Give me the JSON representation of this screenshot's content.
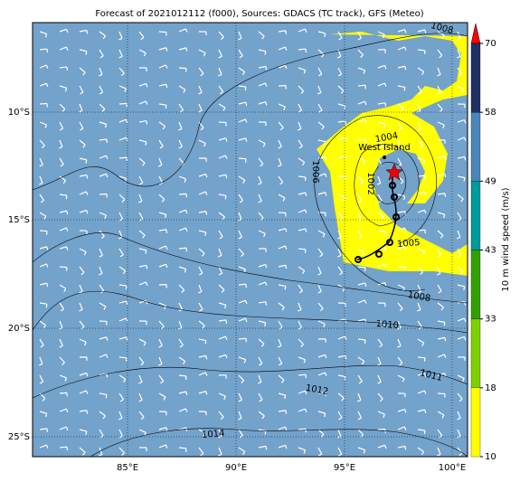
{
  "title": "Forecast of 2021012112 (f000), Sources: GDACS (TC track), GFS (Meteo)",
  "lon_labels": [
    "85°E",
    "90°E",
    "95°E",
    "100°E"
  ],
  "lat_labels": [
    "10°S",
    "15°S",
    "20°S",
    "25°S"
  ],
  "place_label": "West Island",
  "contour_labels": [
    "1008",
    "1004",
    "1006",
    "1002",
    "1005",
    "1008",
    "1010",
    "1011",
    "1012",
    "1014"
  ],
  "colorbar": {
    "label": "10 m wind speed (m/s)",
    "ticks": [
      10,
      18,
      33,
      43,
      49,
      58,
      70
    ],
    "colors": [
      "#ffff00",
      "#80d000",
      "#33a000",
      "#009a9a",
      "#4a86b8",
      "#203060"
    ],
    "extend_color": "#ff0000"
  }
}
